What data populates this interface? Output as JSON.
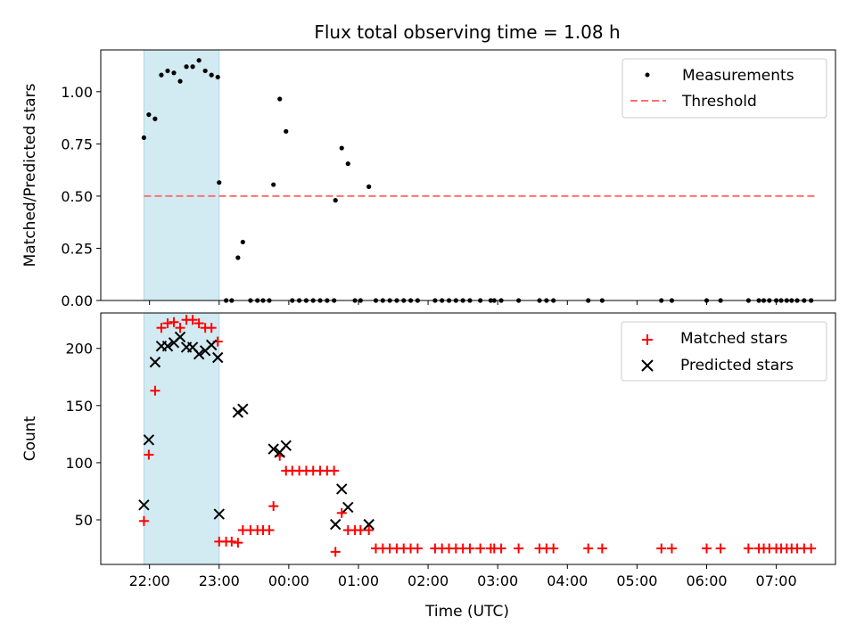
{
  "chart_data": {
    "title": "Flux total observing time = 1.08 h",
    "xlabel": "Time (UTC)",
    "x_unit": "hours (UTC), values past 24 continue after midnight",
    "xlim": [
      21.3,
      31.85
    ],
    "x_ticks": [
      {
        "value": 22,
        "label": "22:00"
      },
      {
        "value": 23,
        "label": "23:00"
      },
      {
        "value": 24,
        "label": "00:00"
      },
      {
        "value": 25,
        "label": "01:00"
      },
      {
        "value": 26,
        "label": "02:00"
      },
      {
        "value": 27,
        "label": "03:00"
      },
      {
        "value": 28,
        "label": "04:00"
      },
      {
        "value": 29,
        "label": "05:00"
      },
      {
        "value": 30,
        "label": "06:00"
      },
      {
        "value": 31,
        "label": "07:00"
      }
    ],
    "shaded_region": {
      "x": [
        21.92,
        23.0
      ],
      "color": "#add8e6"
    },
    "panels": [
      {
        "type": "scatter",
        "ylabel": "Matched/Predicted stars",
        "ylim": [
          0,
          1.2
        ],
        "y_ticks": [
          {
            "value": 0.0,
            "label": "0.00"
          },
          {
            "value": 0.25,
            "label": "0.25"
          },
          {
            "value": 0.5,
            "label": "0.50"
          },
          {
            "value": 0.75,
            "label": "0.75"
          },
          {
            "value": 1.0,
            "label": "1.00"
          }
        ],
        "legend": {
          "position": "upper-right",
          "entries": [
            {
              "label": "Measurements",
              "marker": "dot",
              "color": "#000000"
            },
            {
              "label": "Threshold",
              "marker": "dash-line",
              "color": "#ff7070"
            }
          ]
        },
        "threshold": {
          "y": 0.5,
          "x": [
            21.92,
            31.55
          ],
          "color": "#ff7070"
        },
        "series": [
          {
            "name": "Measurements",
            "marker": "dot",
            "color": "#000000",
            "points": [
              [
                21.92,
                0.78
              ],
              [
                21.99,
                0.89
              ],
              [
                22.08,
                0.87
              ],
              [
                22.17,
                1.08
              ],
              [
                22.26,
                1.1
              ],
              [
                22.35,
                1.09
              ],
              [
                22.44,
                1.05
              ],
              [
                22.53,
                1.12
              ],
              [
                22.62,
                1.12
              ],
              [
                22.71,
                1.15
              ],
              [
                22.8,
                1.1
              ],
              [
                22.89,
                1.08
              ],
              [
                22.98,
                1.07
              ],
              [
                23.0,
                0.565
              ],
              [
                23.1,
                0
              ],
              [
                23.18,
                0
              ],
              [
                23.27,
                0.205
              ],
              [
                23.34,
                0.28
              ],
              [
                23.45,
                0
              ],
              [
                23.55,
                0
              ],
              [
                23.63,
                0
              ],
              [
                23.72,
                0
              ],
              [
                23.78,
                0.555
              ],
              [
                23.87,
                0.965
              ],
              [
                23.96,
                0.81
              ],
              [
                24.05,
                0
              ],
              [
                24.15,
                0
              ],
              [
                24.25,
                0
              ],
              [
                24.35,
                0
              ],
              [
                24.45,
                0
              ],
              [
                24.55,
                0
              ],
              [
                24.65,
                0
              ],
              [
                24.67,
                0.48
              ],
              [
                24.76,
                0.73
              ],
              [
                24.85,
                0.655
              ],
              [
                24.95,
                0
              ],
              [
                25.03,
                0
              ],
              [
                25.15,
                0.545
              ],
              [
                25.25,
                0
              ],
              [
                25.35,
                0
              ],
              [
                25.45,
                0
              ],
              [
                25.55,
                0
              ],
              [
                25.65,
                0
              ],
              [
                25.75,
                0
              ],
              [
                25.85,
                0
              ],
              [
                26.1,
                0
              ],
              [
                26.2,
                0
              ],
              [
                26.3,
                0
              ],
              [
                26.4,
                0
              ],
              [
                26.5,
                0
              ],
              [
                26.6,
                0
              ],
              [
                26.75,
                0
              ],
              [
                26.9,
                0
              ],
              [
                26.95,
                0
              ],
              [
                27.05,
                0
              ],
              [
                27.3,
                0
              ],
              [
                27.6,
                0
              ],
              [
                27.7,
                0
              ],
              [
                27.8,
                0
              ],
              [
                28.3,
                0
              ],
              [
                28.5,
                0
              ],
              [
                29.35,
                0
              ],
              [
                29.5,
                0
              ],
              [
                30.0,
                0
              ],
              [
                30.2,
                0
              ],
              [
                30.6,
                0
              ],
              [
                30.75,
                0
              ],
              [
                30.82,
                0
              ],
              [
                30.9,
                0
              ],
              [
                31.0,
                0
              ],
              [
                31.07,
                0
              ],
              [
                31.15,
                0
              ],
              [
                31.22,
                0
              ],
              [
                31.3,
                0
              ],
              [
                31.4,
                0
              ],
              [
                31.5,
                0
              ]
            ]
          }
        ]
      },
      {
        "type": "scatter",
        "ylabel": "Count",
        "ylim": [
          11,
          231
        ],
        "y_ticks": [
          {
            "value": 50,
            "label": "50"
          },
          {
            "value": 100,
            "label": "100"
          },
          {
            "value": 150,
            "label": "150"
          },
          {
            "value": 200,
            "label": "200"
          }
        ],
        "legend": {
          "position": "upper-right",
          "entries": [
            {
              "label": "Matched stars",
              "marker": "plus",
              "color": "#ff0000"
            },
            {
              "label": "Predicted stars",
              "marker": "x",
              "color": "#000000"
            }
          ]
        },
        "series": [
          {
            "name": "Matched stars",
            "marker": "plus",
            "color": "#ff0000",
            "points": [
              [
                21.92,
                49
              ],
              [
                21.99,
                107
              ],
              [
                22.08,
                163
              ],
              [
                22.17,
                218
              ],
              [
                22.26,
                222
              ],
              [
                22.35,
                223
              ],
              [
                22.44,
                218
              ],
              [
                22.53,
                225
              ],
              [
                22.62,
                225
              ],
              [
                22.71,
                222
              ],
              [
                22.8,
                218
              ],
              [
                22.89,
                218
              ],
              [
                22.98,
                206
              ],
              [
                23.0,
                31
              ],
              [
                23.1,
                31
              ],
              [
                23.18,
                31
              ],
              [
                23.27,
                30
              ],
              [
                23.34,
                41
              ],
              [
                23.45,
                41
              ],
              [
                23.55,
                41
              ],
              [
                23.63,
                41
              ],
              [
                23.72,
                41
              ],
              [
                23.78,
                62
              ],
              [
                23.87,
                106
              ],
              [
                23.96,
                93
              ],
              [
                24.05,
                93
              ],
              [
                24.15,
                93
              ],
              [
                24.25,
                93
              ],
              [
                24.35,
                93
              ],
              [
                24.45,
                93
              ],
              [
                24.55,
                93
              ],
              [
                24.65,
                93
              ],
              [
                24.67,
                22
              ],
              [
                24.76,
                56
              ],
              [
                24.85,
                41
              ],
              [
                24.95,
                41
              ],
              [
                25.03,
                41
              ],
              [
                25.15,
                41
              ],
              [
                25.25,
                25
              ],
              [
                25.35,
                25
              ],
              [
                25.45,
                25
              ],
              [
                25.55,
                25
              ],
              [
                25.65,
                25
              ],
              [
                25.75,
                25
              ],
              [
                25.85,
                25
              ],
              [
                26.1,
                25
              ],
              [
                26.2,
                25
              ],
              [
                26.3,
                25
              ],
              [
                26.4,
                25
              ],
              [
                26.5,
                25
              ],
              [
                26.6,
                25
              ],
              [
                26.75,
                25
              ],
              [
                26.9,
                25
              ],
              [
                26.95,
                25
              ],
              [
                27.05,
                25
              ],
              [
                27.3,
                25
              ],
              [
                27.6,
                25
              ],
              [
                27.7,
                25
              ],
              [
                27.8,
                25
              ],
              [
                28.3,
                25
              ],
              [
                28.5,
                25
              ],
              [
                29.35,
                25
              ],
              [
                29.5,
                25
              ],
              [
                30.0,
                25
              ],
              [
                30.2,
                25
              ],
              [
                30.6,
                25
              ],
              [
                30.75,
                25
              ],
              [
                30.82,
                25
              ],
              [
                30.9,
                25
              ],
              [
                31.0,
                25
              ],
              [
                31.07,
                25
              ],
              [
                31.15,
                25
              ],
              [
                31.22,
                25
              ],
              [
                31.3,
                25
              ],
              [
                31.4,
                25
              ],
              [
                31.5,
                25
              ]
            ]
          },
          {
            "name": "Predicted stars",
            "marker": "x",
            "color": "#000000",
            "points": [
              [
                21.92,
                63
              ],
              [
                21.99,
                120
              ],
              [
                22.08,
                188
              ],
              [
                22.17,
                202
              ],
              [
                22.26,
                202
              ],
              [
                22.35,
                205
              ],
              [
                22.44,
                210
              ],
              [
                22.53,
                201
              ],
              [
                22.62,
                201
              ],
              [
                22.71,
                195
              ],
              [
                22.8,
                198
              ],
              [
                22.89,
                203
              ],
              [
                22.98,
                192
              ],
              [
                23.0,
                55
              ],
              [
                23.27,
                144
              ],
              [
                23.34,
                147
              ],
              [
                23.78,
                112
              ],
              [
                23.87,
                109
              ],
              [
                23.96,
                115
              ],
              [
                24.67,
                46
              ],
              [
                24.76,
                77
              ],
              [
                24.85,
                61
              ],
              [
                25.15,
                46
              ]
            ]
          }
        ]
      }
    ]
  }
}
